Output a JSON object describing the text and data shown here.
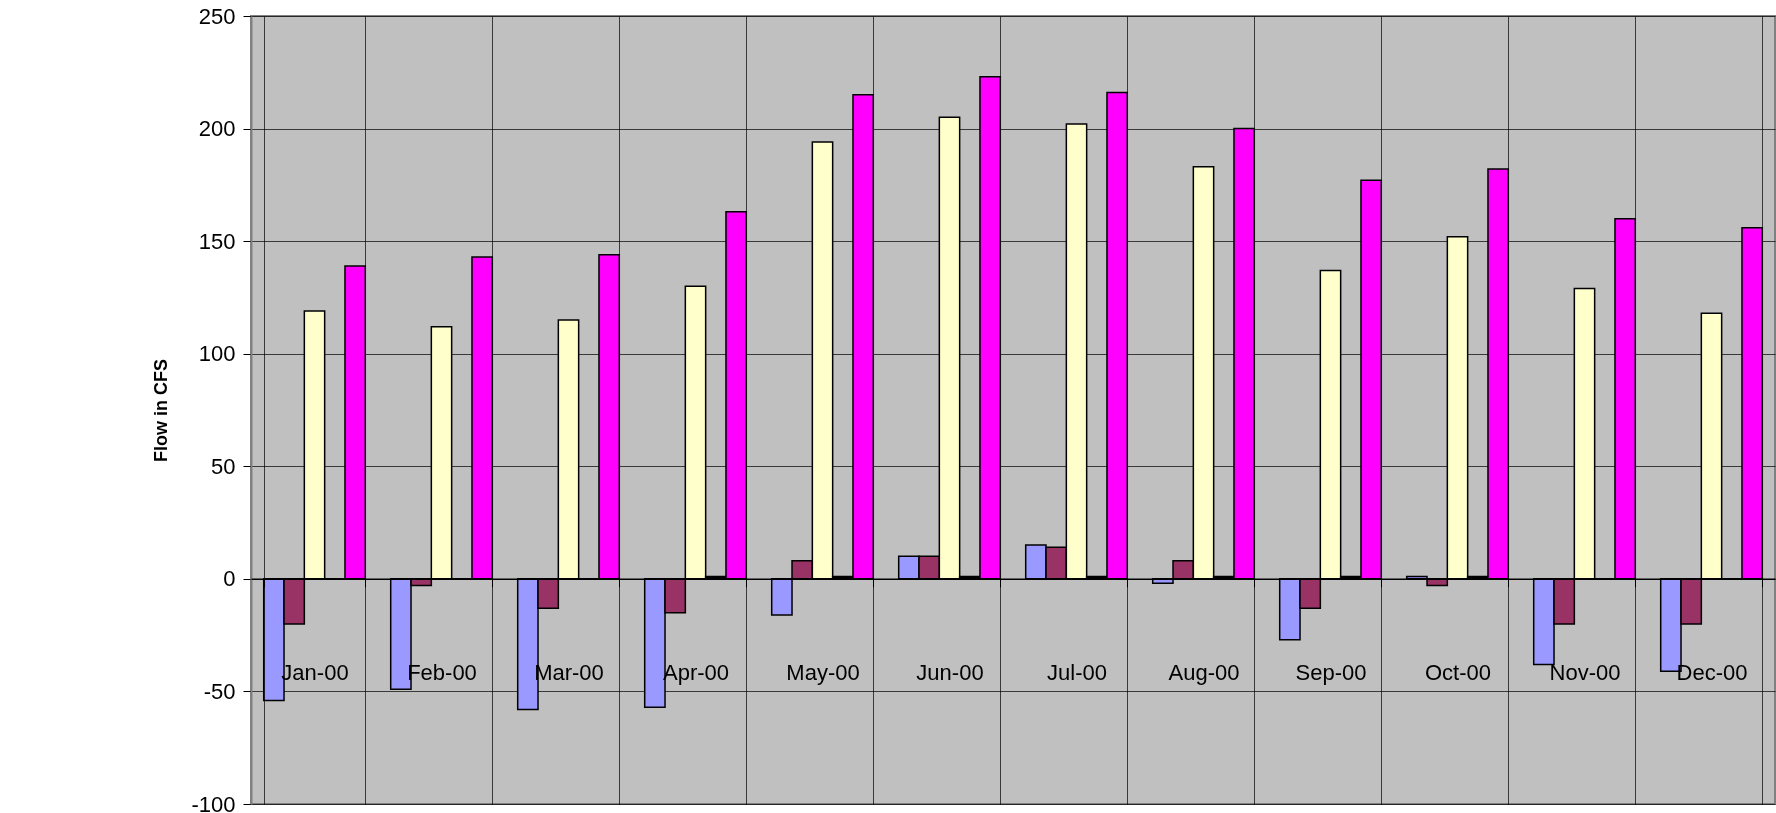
{
  "chart_data": {
    "type": "bar",
    "ylabel": "Flow in CFS",
    "categories": [
      "Jan-00",
      "Feb-00",
      "Mar-00",
      "Apr-00",
      "May-00",
      "Jun-00",
      "Jul-00",
      "Aug-00",
      "Sep-00",
      "Oct-00",
      "Nov-00",
      "Dec-00"
    ],
    "series": [
      {
        "color": "#9999ff",
        "values": [
          -54,
          -49,
          -58,
          -57,
          -16,
          10,
          15,
          -2,
          -27,
          1,
          -38,
          -41
        ]
      },
      {
        "color": "#993366",
        "values": [
          -20,
          -3,
          -13,
          -15,
          8,
          10,
          14,
          8,
          -13,
          -3,
          -20,
          -20
        ]
      },
      {
        "color": "#ffffcc",
        "values": [
          119,
          112,
          115,
          130,
          194,
          205,
          202,
          183,
          137,
          152,
          129,
          118
        ]
      },
      {
        "color": "#000000",
        "values": [
          0,
          0,
          0,
          1,
          1,
          1,
          1,
          1,
          1,
          1,
          0,
          0
        ]
      },
      {
        "color": "#ff00ff",
        "values": [
          139,
          143,
          144,
          163,
          215,
          223,
          216,
          200,
          177,
          182,
          160,
          156
        ]
      }
    ],
    "ylim": [
      -100,
      250
    ],
    "yticks": [
      -100,
      -50,
      0,
      50,
      100,
      150,
      200,
      250
    ],
    "grid": true
  }
}
